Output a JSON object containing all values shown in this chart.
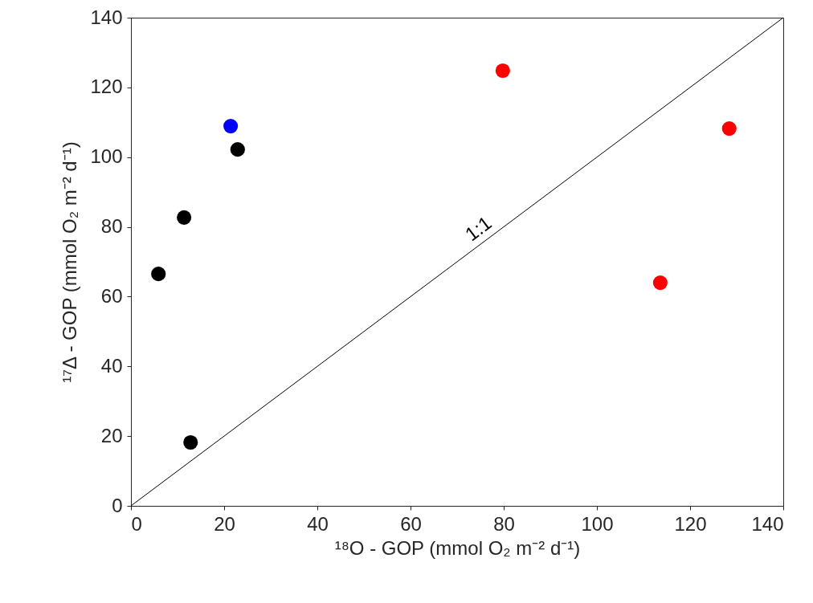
{
  "chart_data": {
    "type": "scatter",
    "xlabel": "¹⁸O - GOP (mmol O₂ m⁻² d⁻¹)",
    "ylabel": "¹⁷Δ - GOP (mmol O₂ m⁻² d⁻¹)",
    "series": [
      {
        "color": "#000000",
        "x": [
          5.9,
          11.4,
          22.9,
          12.8
        ],
        "values": [
          66.5,
          82.7,
          102.2,
          18.2
        ]
      },
      {
        "color": "#0000ff",
        "x": [
          21.4
        ],
        "values": [
          108.9
        ]
      },
      {
        "color": "#ff0000",
        "x": [
          79.8,
          128.4,
          113.6
        ],
        "values": [
          124.8,
          108.2,
          64.0
        ]
      },
      {
        "type": "line",
        "color": "#000000",
        "x": [
          0,
          140
        ],
        "values": [
          0,
          140
        ],
        "marker": "none",
        "line_style": "solid"
      }
    ],
    "annotations": [
      {
        "text": "1:1",
        "x": 78,
        "y": 78
      }
    ],
    "xlim": [
      0,
      140
    ],
    "ylim": [
      0,
      140
    ],
    "xticks": [
      0,
      20,
      40,
      60,
      80,
      100,
      120,
      140
    ],
    "yticks": [
      0,
      20,
      40,
      60,
      80,
      100,
      120,
      140
    ],
    "grid": false,
    "marker": "circle"
  }
}
